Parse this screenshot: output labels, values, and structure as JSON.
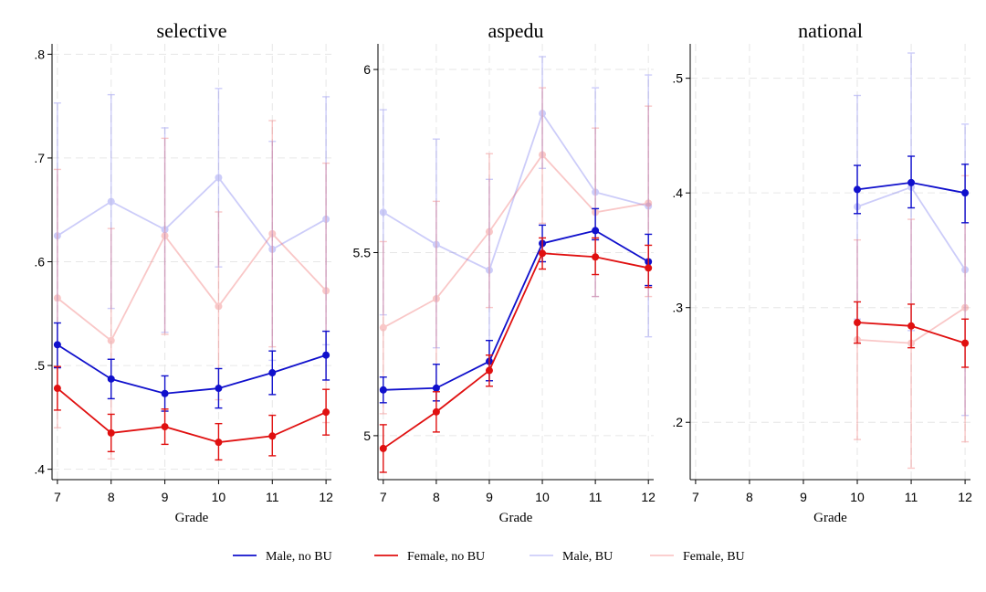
{
  "figure": {
    "xlabel": "Grade",
    "legend": [
      {
        "label": "Male, no BU",
        "color": "#1010cc",
        "opacity": 1.0
      },
      {
        "label": "Female, no BU",
        "color": "#e01010",
        "opacity": 1.0
      },
      {
        "label": "Male, BU",
        "color": "#7070ee",
        "opacity": 0.35
      },
      {
        "label": "Female, BU",
        "color": "#f06060",
        "opacity": 0.35
      }
    ]
  },
  "chart_data": [
    {
      "type": "line",
      "title": "selective",
      "xlabel": "Grade",
      "ylabel": "",
      "x_ticks": [
        7,
        8,
        9,
        10,
        11,
        12
      ],
      "y_ticks": [
        {
          "v": 0.4,
          "label": ".4"
        },
        {
          "v": 0.5,
          "label": ".5"
        },
        {
          "v": 0.6,
          "label": ".6"
        },
        {
          "v": 0.7,
          "label": ".7"
        },
        {
          "v": 0.8,
          "label": ".8"
        }
      ],
      "xlim": [
        6.9,
        12.1
      ],
      "ylim": [
        0.39,
        0.81
      ],
      "grid": true,
      "series": [
        {
          "name": "Male, no BU",
          "color": "#1010cc",
          "opacity": 1.0,
          "x": [
            7,
            8,
            9,
            10,
            11,
            12
          ],
          "y": [
            0.52,
            0.487,
            0.473,
            0.478,
            0.493,
            0.51
          ],
          "lo": [
            0.498,
            0.468,
            0.456,
            0.459,
            0.472,
            0.486
          ],
          "hi": [
            0.541,
            0.506,
            0.49,
            0.497,
            0.514,
            0.533
          ]
        },
        {
          "name": "Female, no BU",
          "color": "#e01010",
          "opacity": 1.0,
          "x": [
            7,
            8,
            9,
            10,
            11,
            12
          ],
          "y": [
            0.478,
            0.435,
            0.441,
            0.426,
            0.432,
            0.455
          ],
          "lo": [
            0.457,
            0.417,
            0.424,
            0.409,
            0.413,
            0.433
          ],
          "hi": [
            0.499,
            0.453,
            0.458,
            0.444,
            0.452,
            0.477
          ]
        },
        {
          "name": "Male, BU",
          "color": "#7070ee",
          "opacity": 0.35,
          "x": [
            7,
            8,
            9,
            10,
            11,
            12
          ],
          "y": [
            0.625,
            0.658,
            0.631,
            0.681,
            0.612,
            0.641
          ],
          "lo": [
            0.497,
            0.555,
            0.532,
            0.595,
            0.505,
            0.52
          ],
          "hi": [
            0.753,
            0.761,
            0.729,
            0.767,
            0.716,
            0.759
          ]
        },
        {
          "name": "Female, BU",
          "color": "#f06060",
          "opacity": 0.35,
          "x": [
            7,
            8,
            9,
            10,
            11,
            12
          ],
          "y": [
            0.565,
            0.524,
            0.625,
            0.557,
            0.627,
            0.572
          ],
          "lo": [
            0.44,
            0.41,
            0.53,
            0.467,
            0.518,
            0.445
          ],
          "hi": [
            0.689,
            0.632,
            0.719,
            0.648,
            0.736,
            0.695
          ]
        }
      ]
    },
    {
      "type": "line",
      "title": "aspedu",
      "xlabel": "Grade",
      "ylabel": "",
      "x_ticks": [
        7,
        8,
        9,
        10,
        11,
        12
      ],
      "y_ticks": [
        {
          "v": 5,
          "label": "5"
        },
        {
          "v": 5.5,
          "label": "5.5"
        },
        {
          "v": 6,
          "label": "6"
        }
      ],
      "xlim": [
        6.9,
        12.1
      ],
      "ylim": [
        4.88,
        6.07
      ],
      "grid": true,
      "series": [
        {
          "name": "Male, no BU",
          "color": "#1010cc",
          "opacity": 1.0,
          "x": [
            7,
            8,
            9,
            10,
            11,
            12
          ],
          "y": [
            5.125,
            5.13,
            5.203,
            5.525,
            5.56,
            5.475
          ],
          "lo": [
            5.09,
            5.095,
            5.15,
            5.475,
            5.535,
            5.41
          ],
          "hi": [
            5.16,
            5.195,
            5.26,
            5.575,
            5.62,
            5.55
          ]
        },
        {
          "name": "Female, no BU",
          "color": "#e01010",
          "opacity": 1.0,
          "x": [
            7,
            8,
            9,
            10,
            11,
            12
          ],
          "y": [
            4.965,
            5.065,
            5.178,
            5.498,
            5.488,
            5.458
          ],
          "lo": [
            4.9,
            5.01,
            5.135,
            5.455,
            5.44,
            5.405
          ],
          "hi": [
            5.03,
            5.12,
            5.22,
            5.54,
            5.54,
            5.52
          ]
        },
        {
          "name": "Male, BU",
          "color": "#7070ee",
          "opacity": 0.35,
          "x": [
            7,
            8,
            9,
            10,
            11,
            12
          ],
          "y": [
            5.61,
            5.522,
            5.452,
            5.88,
            5.665,
            5.627
          ],
          "lo": [
            5.33,
            5.24,
            5.2,
            5.73,
            5.38,
            5.27
          ],
          "hi": [
            5.89,
            5.81,
            5.7,
            6.035,
            5.95,
            5.985
          ]
        },
        {
          "name": "Female, BU",
          "color": "#f06060",
          "opacity": 0.35,
          "x": [
            7,
            8,
            9,
            10,
            11,
            12
          ],
          "y": [
            5.295,
            5.374,
            5.557,
            5.767,
            5.61,
            5.635
          ],
          "lo": [
            5.06,
            5.12,
            5.35,
            5.58,
            5.38,
            5.38
          ],
          "hi": [
            5.53,
            5.64,
            5.77,
            5.95,
            5.84,
            5.9
          ]
        }
      ]
    },
    {
      "type": "line",
      "title": "national",
      "xlabel": "Grade",
      "ylabel": "",
      "x_ticks": [
        7,
        8,
        9,
        10,
        11,
        12
      ],
      "y_ticks": [
        {
          "v": 0.2,
          "label": ".2"
        },
        {
          "v": 0.3,
          "label": ".3"
        },
        {
          "v": 0.4,
          "label": ".4"
        },
        {
          "v": 0.5,
          "label": ".5"
        }
      ],
      "xlim": [
        6.9,
        12.1
      ],
      "ylim": [
        0.15,
        0.53
      ],
      "grid": true,
      "series": [
        {
          "name": "Male, no BU",
          "color": "#1010cc",
          "opacity": 1.0,
          "x": [
            10,
            11,
            12
          ],
          "y": [
            0.403,
            0.409,
            0.4
          ],
          "lo": [
            0.382,
            0.387,
            0.374
          ],
          "hi": [
            0.424,
            0.432,
            0.425
          ]
        },
        {
          "name": "Female, no BU",
          "color": "#e01010",
          "opacity": 1.0,
          "x": [
            10,
            11,
            12
          ],
          "y": [
            0.287,
            0.284,
            0.269
          ],
          "lo": [
            0.269,
            0.265,
            0.248
          ],
          "hi": [
            0.305,
            0.303,
            0.29
          ]
        },
        {
          "name": "Male, BU",
          "color": "#7070ee",
          "opacity": 0.35,
          "x": [
            10,
            11,
            12
          ],
          "y": [
            0.388,
            0.405,
            0.333
          ],
          "lo": [
            0.29,
            0.28,
            0.206
          ],
          "hi": [
            0.485,
            0.522,
            0.46
          ]
        },
        {
          "name": "Female, BU",
          "color": "#f06060",
          "opacity": 0.35,
          "x": [
            10,
            11,
            12
          ],
          "y": [
            0.272,
            0.269,
            0.3
          ],
          "lo": [
            0.185,
            0.16,
            0.183
          ],
          "hi": [
            0.359,
            0.377,
            0.415
          ]
        }
      ]
    }
  ]
}
